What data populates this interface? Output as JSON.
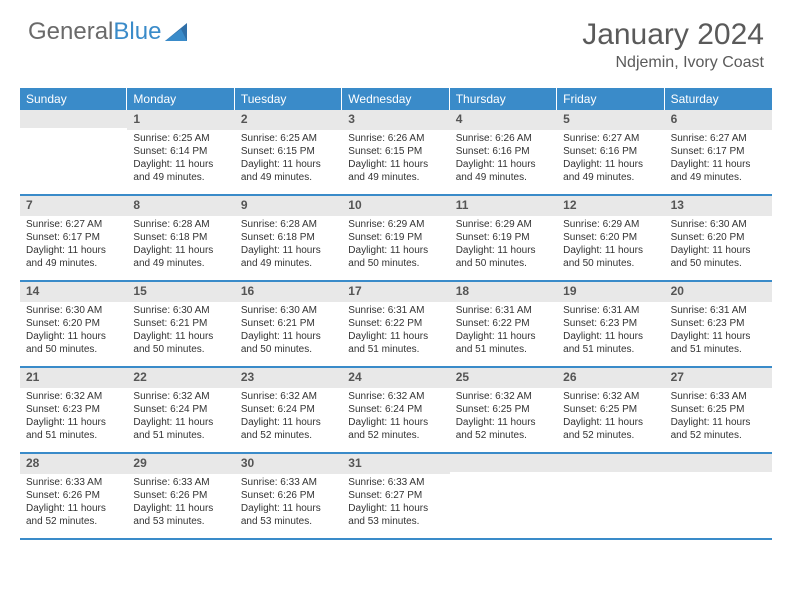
{
  "logo": {
    "part1": "General",
    "part2": "Blue"
  },
  "title": "January 2024",
  "location": "Ndjemin, Ivory Coast",
  "colors": {
    "header_bg": "#3a8bc9",
    "header_text": "#ffffff",
    "daynum_bg": "#e8e8e8",
    "text": "#333333",
    "logo_gray": "#6a6a6a",
    "logo_blue": "#3a8bc9"
  },
  "daysOfWeek": [
    "Sunday",
    "Monday",
    "Tuesday",
    "Wednesday",
    "Thursday",
    "Friday",
    "Saturday"
  ],
  "weeks": [
    [
      {
        "n": "",
        "sr": "",
        "ss": "",
        "dl": ""
      },
      {
        "n": "1",
        "sr": "Sunrise: 6:25 AM",
        "ss": "Sunset: 6:14 PM",
        "dl": "Daylight: 11 hours and 49 minutes."
      },
      {
        "n": "2",
        "sr": "Sunrise: 6:25 AM",
        "ss": "Sunset: 6:15 PM",
        "dl": "Daylight: 11 hours and 49 minutes."
      },
      {
        "n": "3",
        "sr": "Sunrise: 6:26 AM",
        "ss": "Sunset: 6:15 PM",
        "dl": "Daylight: 11 hours and 49 minutes."
      },
      {
        "n": "4",
        "sr": "Sunrise: 6:26 AM",
        "ss": "Sunset: 6:16 PM",
        "dl": "Daylight: 11 hours and 49 minutes."
      },
      {
        "n": "5",
        "sr": "Sunrise: 6:27 AM",
        "ss": "Sunset: 6:16 PM",
        "dl": "Daylight: 11 hours and 49 minutes."
      },
      {
        "n": "6",
        "sr": "Sunrise: 6:27 AM",
        "ss": "Sunset: 6:17 PM",
        "dl": "Daylight: 11 hours and 49 minutes."
      }
    ],
    [
      {
        "n": "7",
        "sr": "Sunrise: 6:27 AM",
        "ss": "Sunset: 6:17 PM",
        "dl": "Daylight: 11 hours and 49 minutes."
      },
      {
        "n": "8",
        "sr": "Sunrise: 6:28 AM",
        "ss": "Sunset: 6:18 PM",
        "dl": "Daylight: 11 hours and 49 minutes."
      },
      {
        "n": "9",
        "sr": "Sunrise: 6:28 AM",
        "ss": "Sunset: 6:18 PM",
        "dl": "Daylight: 11 hours and 49 minutes."
      },
      {
        "n": "10",
        "sr": "Sunrise: 6:29 AM",
        "ss": "Sunset: 6:19 PM",
        "dl": "Daylight: 11 hours and 50 minutes."
      },
      {
        "n": "11",
        "sr": "Sunrise: 6:29 AM",
        "ss": "Sunset: 6:19 PM",
        "dl": "Daylight: 11 hours and 50 minutes."
      },
      {
        "n": "12",
        "sr": "Sunrise: 6:29 AM",
        "ss": "Sunset: 6:20 PM",
        "dl": "Daylight: 11 hours and 50 minutes."
      },
      {
        "n": "13",
        "sr": "Sunrise: 6:30 AM",
        "ss": "Sunset: 6:20 PM",
        "dl": "Daylight: 11 hours and 50 minutes."
      }
    ],
    [
      {
        "n": "14",
        "sr": "Sunrise: 6:30 AM",
        "ss": "Sunset: 6:20 PM",
        "dl": "Daylight: 11 hours and 50 minutes."
      },
      {
        "n": "15",
        "sr": "Sunrise: 6:30 AM",
        "ss": "Sunset: 6:21 PM",
        "dl": "Daylight: 11 hours and 50 minutes."
      },
      {
        "n": "16",
        "sr": "Sunrise: 6:30 AM",
        "ss": "Sunset: 6:21 PM",
        "dl": "Daylight: 11 hours and 50 minutes."
      },
      {
        "n": "17",
        "sr": "Sunrise: 6:31 AM",
        "ss": "Sunset: 6:22 PM",
        "dl": "Daylight: 11 hours and 51 minutes."
      },
      {
        "n": "18",
        "sr": "Sunrise: 6:31 AM",
        "ss": "Sunset: 6:22 PM",
        "dl": "Daylight: 11 hours and 51 minutes."
      },
      {
        "n": "19",
        "sr": "Sunrise: 6:31 AM",
        "ss": "Sunset: 6:23 PM",
        "dl": "Daylight: 11 hours and 51 minutes."
      },
      {
        "n": "20",
        "sr": "Sunrise: 6:31 AM",
        "ss": "Sunset: 6:23 PM",
        "dl": "Daylight: 11 hours and 51 minutes."
      }
    ],
    [
      {
        "n": "21",
        "sr": "Sunrise: 6:32 AM",
        "ss": "Sunset: 6:23 PM",
        "dl": "Daylight: 11 hours and 51 minutes."
      },
      {
        "n": "22",
        "sr": "Sunrise: 6:32 AM",
        "ss": "Sunset: 6:24 PM",
        "dl": "Daylight: 11 hours and 51 minutes."
      },
      {
        "n": "23",
        "sr": "Sunrise: 6:32 AM",
        "ss": "Sunset: 6:24 PM",
        "dl": "Daylight: 11 hours and 52 minutes."
      },
      {
        "n": "24",
        "sr": "Sunrise: 6:32 AM",
        "ss": "Sunset: 6:24 PM",
        "dl": "Daylight: 11 hours and 52 minutes."
      },
      {
        "n": "25",
        "sr": "Sunrise: 6:32 AM",
        "ss": "Sunset: 6:25 PM",
        "dl": "Daylight: 11 hours and 52 minutes."
      },
      {
        "n": "26",
        "sr": "Sunrise: 6:32 AM",
        "ss": "Sunset: 6:25 PM",
        "dl": "Daylight: 11 hours and 52 minutes."
      },
      {
        "n": "27",
        "sr": "Sunrise: 6:33 AM",
        "ss": "Sunset: 6:25 PM",
        "dl": "Daylight: 11 hours and 52 minutes."
      }
    ],
    [
      {
        "n": "28",
        "sr": "Sunrise: 6:33 AM",
        "ss": "Sunset: 6:26 PM",
        "dl": "Daylight: 11 hours and 52 minutes."
      },
      {
        "n": "29",
        "sr": "Sunrise: 6:33 AM",
        "ss": "Sunset: 6:26 PM",
        "dl": "Daylight: 11 hours and 53 minutes."
      },
      {
        "n": "30",
        "sr": "Sunrise: 6:33 AM",
        "ss": "Sunset: 6:26 PM",
        "dl": "Daylight: 11 hours and 53 minutes."
      },
      {
        "n": "31",
        "sr": "Sunrise: 6:33 AM",
        "ss": "Sunset: 6:27 PM",
        "dl": "Daylight: 11 hours and 53 minutes."
      },
      {
        "n": "",
        "sr": "",
        "ss": "",
        "dl": ""
      },
      {
        "n": "",
        "sr": "",
        "ss": "",
        "dl": ""
      },
      {
        "n": "",
        "sr": "",
        "ss": "",
        "dl": ""
      }
    ]
  ]
}
